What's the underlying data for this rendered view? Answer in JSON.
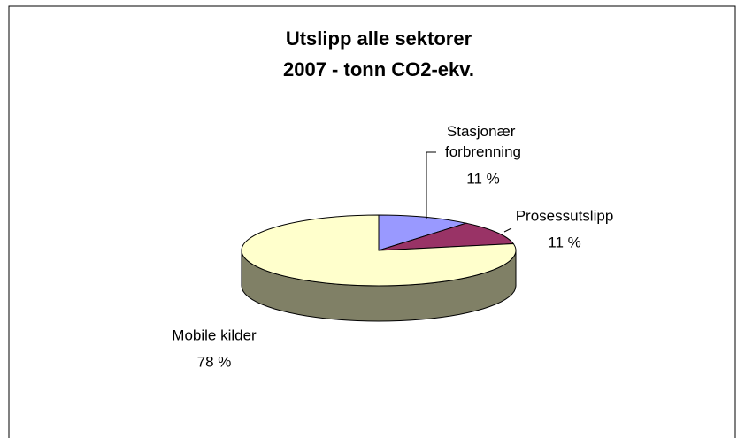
{
  "chart_data": {
    "type": "pie",
    "title": [
      "Utslipp alle sektorer",
      "2007 - tonn CO2-ekv."
    ],
    "categories": [
      "Stasjonær forbrenning",
      "Prosessutslipp",
      "Mobile kilder"
    ],
    "values": [
      11,
      11,
      78
    ],
    "value_labels": [
      "11 %",
      "11 %",
      "78 %"
    ],
    "colors": [
      "#9999ff",
      "#993366",
      "#ffffcc"
    ]
  }
}
